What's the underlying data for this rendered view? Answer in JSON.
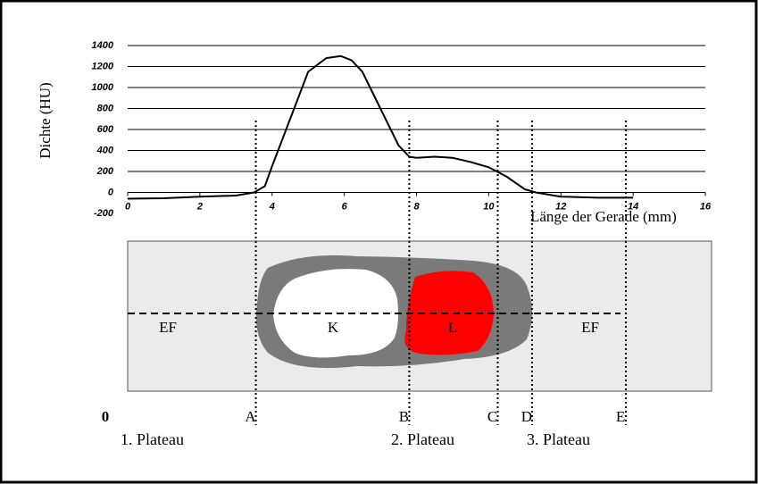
{
  "chart_data": {
    "type": "line",
    "y_label": "Dichte (HU)",
    "x_label": "Länge der  Gerade (mm)",
    "x": [
      0,
      1,
      2,
      3,
      3.5,
      3.8,
      4,
      4.5,
      5,
      5.5,
      5.9,
      6.2,
      6.5,
      7,
      7.5,
      7.8,
      8,
      8.5,
      9,
      9.5,
      10,
      10.5,
      11,
      11.3,
      12,
      13,
      14
    ],
    "values": [
      -60,
      -55,
      -40,
      -30,
      0,
      60,
      250,
      700,
      1150,
      1280,
      1300,
      1260,
      1150,
      800,
      450,
      340,
      330,
      340,
      330,
      290,
      240,
      150,
      30,
      0,
      -40,
      -50,
      -50
    ],
    "color": "#000000",
    "xlim": [
      0,
      16
    ],
    "xticks": [
      0,
      2,
      4,
      6,
      8,
      10,
      12,
      14,
      16
    ],
    "ylim": [
      -200,
      1400
    ],
    "yticks": [
      -200,
      0,
      200,
      400,
      600,
      800,
      1000,
      1200,
      1400
    ],
    "grid": true,
    "markers": [
      {
        "label": "A",
        "x": 3.55
      },
      {
        "label": "B",
        "x": 7.8
      },
      {
        "label": "C",
        "x": 10.25
      },
      {
        "label": "D",
        "x": 11.2
      },
      {
        "label": "E",
        "x": 13.8
      }
    ],
    "origin_label": "0",
    "plateaus": [
      "1. Plateau",
      "2. Plateau",
      "3. Plateau"
    ],
    "regions": [
      "EF",
      "K",
      "L",
      "EF"
    ]
  }
}
